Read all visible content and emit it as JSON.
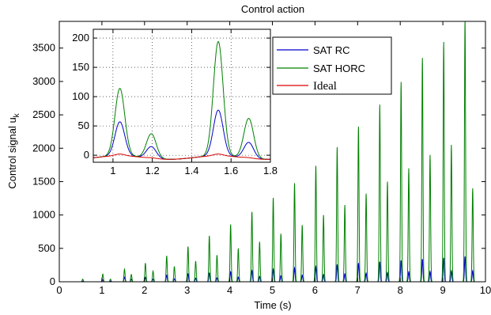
{
  "chart_data": [
    {
      "type": "line",
      "title": "Control action",
      "xlabel": "Time (s)",
      "ylabel": "Control signal u",
      "ylabel_subscript": "k",
      "xlim": [
        0,
        10
      ],
      "ylim": [
        0,
        3900
      ],
      "xticks": [
        "0",
        "1",
        "2",
        "3",
        "4",
        "5",
        "6",
        "7",
        "8",
        "9",
        "10"
      ],
      "yticks": [
        "0",
        "500",
        "1000",
        "1500",
        "2000",
        "2500",
        "3000",
        "3500"
      ],
      "grid": false,
      "legend_position": "inside inset, upper right",
      "series": [
        {
          "name": "SAT RC",
          "color": "#0000cc",
          "peaks_x": [
            0.55,
            1.02,
            1.2,
            1.53,
            1.69,
            2.02,
            2.2,
            2.52,
            2.7,
            3.02,
            3.2,
            3.52,
            3.7,
            4.02,
            4.2,
            4.52,
            4.7,
            5.02,
            5.2,
            5.52,
            5.7,
            6.02,
            6.2,
            6.52,
            6.7,
            7.02,
            7.2,
            7.52,
            7.7,
            8.02,
            8.2,
            8.52,
            8.7,
            9.02,
            9.2,
            9.52,
            9.7
          ],
          "peaks_y": [
            10,
            30,
            12,
            70,
            40,
            70,
            40,
            100,
            45,
            120,
            55,
            130,
            60,
            150,
            70,
            170,
            80,
            190,
            90,
            210,
            100,
            230,
            110,
            260,
            120,
            280,
            130,
            300,
            140,
            320,
            150,
            340,
            155,
            360,
            165,
            380,
            165
          ]
        },
        {
          "name": "SAT HORC",
          "color": "#008000",
          "peaks_x": [
            0.55,
            1.02,
            1.2,
            1.53,
            1.69,
            2.02,
            2.2,
            2.52,
            2.7,
            3.02,
            3.2,
            3.52,
            3.7,
            4.02,
            4.2,
            4.52,
            4.7,
            5.02,
            5.2,
            5.52,
            5.7,
            6.02,
            6.2,
            6.52,
            6.7,
            7.02,
            7.2,
            7.52,
            7.7,
            8.02,
            8.2,
            8.52,
            8.7,
            9.02,
            9.2,
            9.52,
            9.7
          ],
          "peaks_y": [
            40,
            115,
            40,
            190,
            110,
            280,
            160,
            390,
            230,
            530,
            310,
            690,
            400,
            860,
            500,
            1050,
            600,
            1260,
            720,
            1480,
            850,
            1740,
            1000,
            2020,
            1150,
            2330,
            1320,
            2660,
            1500,
            3000,
            1700,
            3360,
            1900,
            3600,
            2050,
            3950,
            1400
          ]
        },
        {
          "name": "Ideal",
          "color": "#dd0000",
          "peaks_x": [
            1.02,
            1.53
          ],
          "peaks_y": [
            2,
            2
          ]
        }
      ]
    },
    {
      "type": "line",
      "title": "",
      "xlim": [
        0.9,
        1.8
      ],
      "ylim": [
        -12,
        215
      ],
      "xticks": [
        "1",
        "1.2",
        "1.4",
        "1.6",
        "1.8"
      ],
      "yticks": [
        "0",
        "50",
        "100",
        "150",
        "200"
      ],
      "grid": true,
      "series": [
        {
          "name": "SAT RC",
          "color": "#0000cc",
          "peaks_x": [
            1.035,
            1.195,
            1.535,
            1.69
          ],
          "peaks_y": [
            58,
            20,
            78,
            27
          ]
        },
        {
          "name": "SAT HORC",
          "color": "#008000",
          "peaks_x": [
            1.035,
            1.195,
            1.535,
            1.69
          ],
          "peaks_y": [
            115,
            42,
            195,
            68
          ]
        },
        {
          "name": "Ideal",
          "color": "#dd0000",
          "peaks_x": [
            1.035,
            1.2,
            1.535,
            1.69
          ],
          "peaks_y": [
            3,
            1,
            3,
            1
          ]
        }
      ]
    }
  ]
}
